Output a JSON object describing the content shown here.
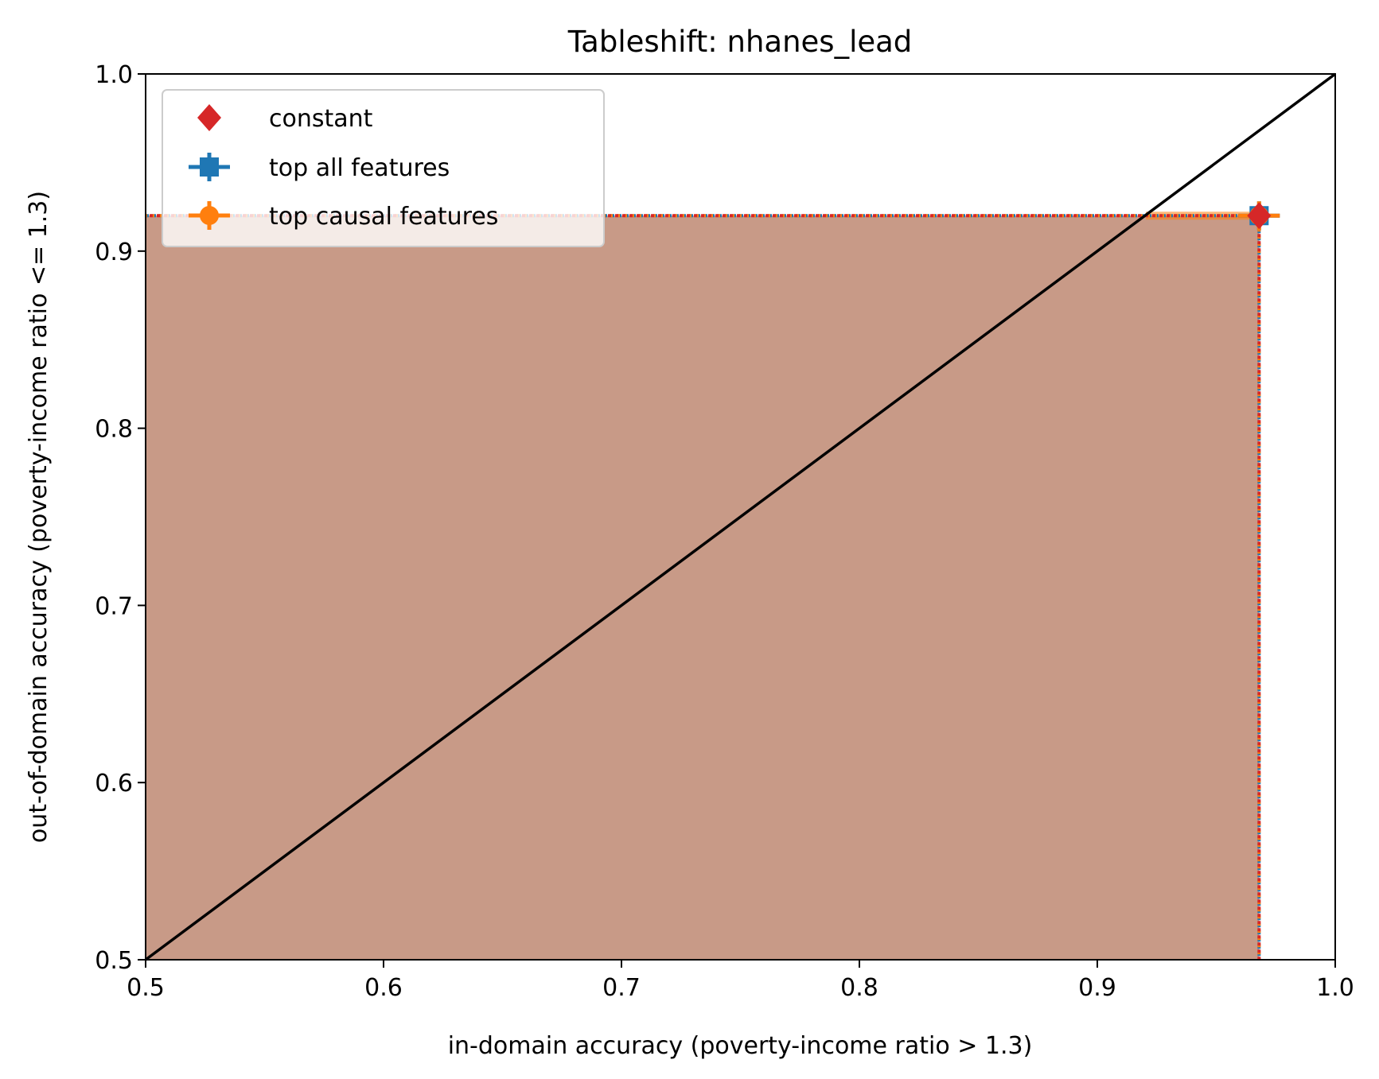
{
  "chart_data": {
    "type": "scatter",
    "title": "Tableshift: nhanes_lead",
    "xlabel": "in-domain accuracy (poverty-income ratio > 1.3)",
    "ylabel": "out-of-domain accuracy (poverty-income ratio <= 1.3)",
    "xlim": [
      0.5,
      1.0
    ],
    "ylim": [
      0.5,
      1.0
    ],
    "xticks": [
      "0.5",
      "0.6",
      "0.7",
      "0.8",
      "0.9",
      "1.0"
    ],
    "yticks": [
      "0.5",
      "0.6",
      "0.7",
      "0.8",
      "0.9",
      "1.0"
    ],
    "grid": false,
    "legend_position": "top-left",
    "diagonal_line": {
      "from": [
        0.5,
        0.5
      ],
      "to": [
        1.0,
        1.0
      ],
      "color": "#000000"
    },
    "series": [
      {
        "name": "constant",
        "marker": "diamond",
        "color": "#d62728",
        "points": [
          {
            "x": 0.968,
            "y": 0.92
          }
        ]
      },
      {
        "name": "top all features",
        "marker": "plus-filled",
        "color": "#1f77b4",
        "points": [
          {
            "x": 0.968,
            "y": 0.92
          }
        ]
      },
      {
        "name": "top causal features",
        "marker": "circle",
        "color": "#ff7f0e",
        "points": [
          {
            "x": 0.968,
            "y": 0.92
          }
        ]
      }
    ],
    "shaded_region": {
      "x_max": 0.968,
      "y_max": 0.92,
      "color": "#c89a87"
    }
  }
}
